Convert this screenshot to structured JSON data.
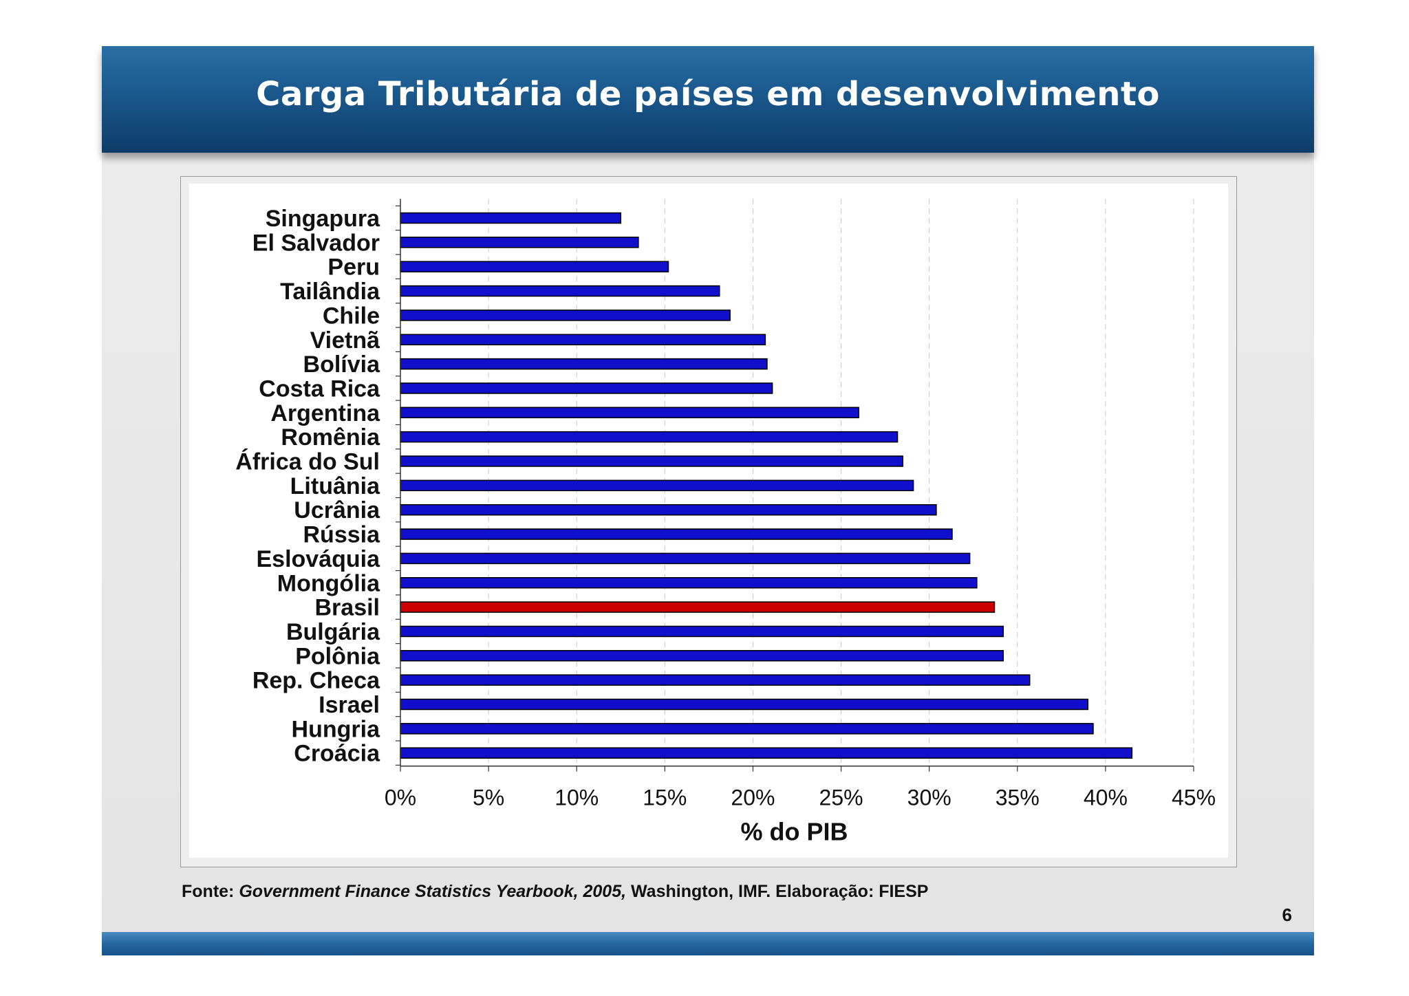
{
  "header": {
    "title": "Carga Tributária de países em desenvolvimento"
  },
  "source": {
    "prefix": "Fonte: ",
    "publication": "Government Finance Statistics Yearbook, 2005,",
    "suffix": " Washington, IMF.  Elaboração: FIESP"
  },
  "page_number": "6",
  "colors": {
    "bar": "#1010cc",
    "highlight": "#cc0000",
    "header": "#1d5d92"
  },
  "chart_data": {
    "type": "bar",
    "orientation": "horizontal",
    "title": "",
    "xlabel": "% do PIB",
    "ylabel": "",
    "xlim": [
      0,
      45
    ],
    "xticks": [
      "0%",
      "5%",
      "10%",
      "15%",
      "20%",
      "25%",
      "30%",
      "35%",
      "40%",
      "45%"
    ],
    "grid": "vertical dashed",
    "highlight_category": "Brasil",
    "categories": [
      "Singapura",
      "El Salvador",
      "Peru",
      "Tailândia",
      "Chile",
      "Vietnã",
      "Bolívia",
      "Costa Rica",
      "Argentina",
      "Romênia",
      "África do Sul",
      "Lituânia",
      "Ucrânia",
      "Rússia",
      "Eslováquia",
      "Mongólia",
      "Brasil",
      "Bulgária",
      "Polônia",
      "Rep. Checa",
      "Israel",
      "Hungria",
      "Croácia"
    ],
    "values": [
      12.5,
      13.5,
      15.2,
      18.1,
      18.7,
      20.7,
      20.8,
      21.1,
      26.0,
      28.2,
      28.5,
      29.1,
      30.4,
      31.3,
      32.3,
      32.7,
      33.7,
      34.2,
      34.2,
      35.7,
      39.0,
      39.3,
      41.5
    ]
  }
}
